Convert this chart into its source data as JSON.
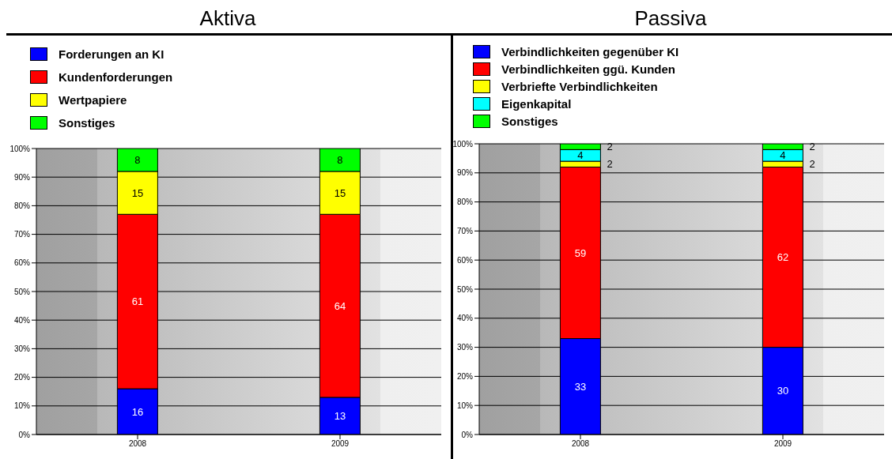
{
  "chart_data": [
    {
      "type": "bar",
      "title": "Aktiva",
      "stacked": true,
      "categories": [
        "2008",
        "2009"
      ],
      "ylim": [
        0,
        100
      ],
      "yticks": [
        {
          "value": 0,
          "label": "0%"
        },
        {
          "value": 10,
          "label": "10%"
        },
        {
          "value": 20,
          "label": "20%"
        },
        {
          "value": 30,
          "label": "30%"
        },
        {
          "value": 40,
          "label": "40%"
        },
        {
          "value": 50,
          "label": "50%"
        },
        {
          "value": 60,
          "label": "60%"
        },
        {
          "value": 70,
          "label": "70%"
        },
        {
          "value": 80,
          "label": "80%"
        },
        {
          "value": 90,
          "label": "90%"
        },
        {
          "value": 100,
          "label": "100%"
        }
      ],
      "grid": "y",
      "legend": "top",
      "data_labels": true,
      "series": [
        {
          "name": "Forderungen an KI",
          "color": "#0000ff",
          "values": [
            16,
            13
          ]
        },
        {
          "name": "Kundenforderungen",
          "color": "#ff0000",
          "values": [
            61,
            64
          ]
        },
        {
          "name": "Wertpapiere",
          "color": "#ffff00",
          "values": [
            15,
            15
          ]
        },
        {
          "name": "Sonstiges",
          "color": "#00ff00",
          "values": [
            8,
            8
          ]
        }
      ]
    },
    {
      "type": "bar",
      "title": "Passiva",
      "stacked": true,
      "categories": [
        "2008",
        "2009"
      ],
      "ylim": [
        0,
        100
      ],
      "yticks": [
        {
          "value": 0,
          "label": "0%"
        },
        {
          "value": 10,
          "label": "10%"
        },
        {
          "value": 20,
          "label": "20%"
        },
        {
          "value": 30,
          "label": "30%"
        },
        {
          "value": 40,
          "label": "40%"
        },
        {
          "value": 50,
          "label": "50%"
        },
        {
          "value": 60,
          "label": "60%"
        },
        {
          "value": 70,
          "label": "70%"
        },
        {
          "value": 80,
          "label": "80%"
        },
        {
          "value": 90,
          "label": "90%"
        },
        {
          "value": 100,
          "label": "100%"
        }
      ],
      "grid": "y",
      "legend": "top",
      "data_labels": true,
      "series": [
        {
          "name": "Verbindlichkeiten gegenüber  KI",
          "color": "#0000ff",
          "values": [
            33,
            30
          ]
        },
        {
          "name": "Verbindlichkeiten ggü. Kunden",
          "color": "#ff0000",
          "values": [
            59,
            62
          ]
        },
        {
          "name": "Verbriefte Verbindlichkeiten",
          "color": "#ffff00",
          "values": [
            2,
            2
          ]
        },
        {
          "name": "Eigenkapital",
          "color": "#00ffff",
          "values": [
            4,
            4
          ]
        },
        {
          "name": "Sonstiges",
          "color": "#00ff00",
          "values": [
            2,
            2
          ]
        }
      ]
    }
  ]
}
